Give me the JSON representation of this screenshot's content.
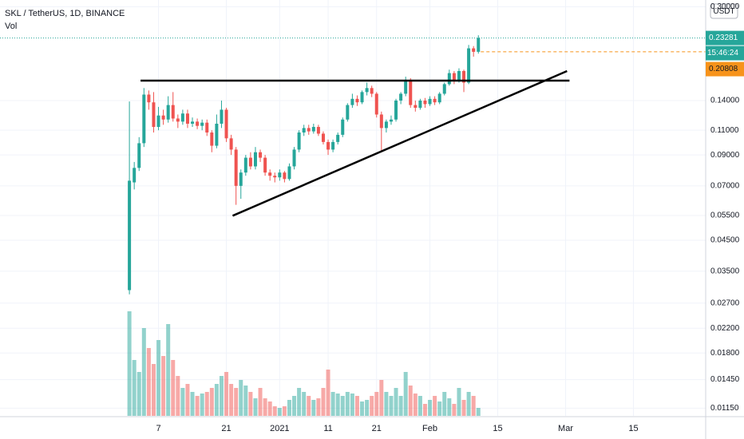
{
  "chart_data": {
    "type": "candlestick",
    "title": "SKL / TetherUS, 1D, BINANCE",
    "indicator": "Vol",
    "currency": "USDT",
    "log_scale": true,
    "grid": true,
    "up_color": "#26a69a",
    "down_color": "#ef5350",
    "line_color": "#000000",
    "price_line_color": "#f7931a",
    "xlim": [
      -26.7,
      118.9
    ],
    "ylim": [
      0.0108,
      0.317
    ],
    "xticks": [
      {
        "value": 6,
        "label": "7"
      },
      {
        "value": 20,
        "label": "21"
      },
      {
        "value": 31,
        "label": "2021"
      },
      {
        "value": 41,
        "label": "11"
      },
      {
        "value": 51,
        "label": "21"
      },
      {
        "value": 62,
        "label": "Feb"
      },
      {
        "value": 76,
        "label": "15"
      },
      {
        "value": 90,
        "label": "Mar"
      },
      {
        "value": 104,
        "label": "15"
      }
    ],
    "yticks": [
      {
        "value": 0.3,
        "label": "0.30000"
      },
      {
        "value": 0.14,
        "label": "0.14000"
      },
      {
        "value": 0.11,
        "label": "0.11000"
      },
      {
        "value": 0.09,
        "label": "0.09000"
      },
      {
        "value": 0.07,
        "label": "0.07000"
      },
      {
        "value": 0.055,
        "label": "0.05500"
      },
      {
        "value": 0.045,
        "label": "0.04500"
      },
      {
        "value": 0.035,
        "label": "0.03500"
      },
      {
        "value": 0.027,
        "label": "0.02700"
      },
      {
        "value": 0.022,
        "label": "0.02200"
      },
      {
        "value": 0.018,
        "label": "0.01800"
      },
      {
        "value": 0.0145,
        "label": "0.01450"
      },
      {
        "value": 0.0115,
        "label": "0.01150"
      }
    ],
    "last_price": 0.23281,
    "countdown": "15:46:24",
    "price_line": 0.20808,
    "ohlc": [
      [
        0.03,
        0.139,
        0.029,
        0.073
      ],
      [
        0.072,
        0.085,
        0.068,
        0.081
      ],
      [
        0.081,
        0.104,
        0.079,
        0.099
      ],
      [
        0.099,
        0.155,
        0.096,
        0.147
      ],
      [
        0.147,
        0.152,
        0.13,
        0.138
      ],
      [
        0.138,
        0.15,
        0.108,
        0.113
      ],
      [
        0.113,
        0.133,
        0.11,
        0.124
      ],
      [
        0.124,
        0.13,
        0.115,
        0.12
      ],
      [
        0.12,
        0.145,
        0.117,
        0.135
      ],
      [
        0.135,
        0.15,
        0.118,
        0.121
      ],
      [
        0.121,
        0.125,
        0.112,
        0.118
      ],
      [
        0.118,
        0.13,
        0.115,
        0.126
      ],
      [
        0.126,
        0.13,
        0.112,
        0.116
      ],
      [
        0.116,
        0.122,
        0.113,
        0.118
      ],
      [
        0.118,
        0.121,
        0.111,
        0.114
      ],
      [
        0.114,
        0.12,
        0.11,
        0.117
      ],
      [
        0.117,
        0.12,
        0.105,
        0.108
      ],
      [
        0.108,
        0.11,
        0.092,
        0.097
      ],
      [
        0.097,
        0.125,
        0.095,
        0.116
      ],
      [
        0.116,
        0.14,
        0.112,
        0.13
      ],
      [
        0.13,
        0.132,
        0.1,
        0.103
      ],
      [
        0.103,
        0.106,
        0.09,
        0.094
      ],
      [
        0.094,
        0.096,
        0.06,
        0.07
      ],
      [
        0.07,
        0.08,
        0.063,
        0.078
      ],
      [
        0.078,
        0.09,
        0.076,
        0.088
      ],
      [
        0.088,
        0.092,
        0.08,
        0.082
      ],
      [
        0.082,
        0.096,
        0.08,
        0.092
      ],
      [
        0.092,
        0.094,
        0.085,
        0.088
      ],
      [
        0.088,
        0.09,
        0.076,
        0.078
      ],
      [
        0.078,
        0.08,
        0.073,
        0.076
      ],
      [
        0.076,
        0.078,
        0.072,
        0.075
      ],
      [
        0.075,
        0.08,
        0.073,
        0.078
      ],
      [
        0.078,
        0.079,
        0.072,
        0.074
      ],
      [
        0.074,
        0.084,
        0.073,
        0.082
      ],
      [
        0.082,
        0.096,
        0.08,
        0.094
      ],
      [
        0.094,
        0.11,
        0.092,
        0.108
      ],
      [
        0.108,
        0.115,
        0.105,
        0.112
      ],
      [
        0.112,
        0.115,
        0.106,
        0.109
      ],
      [
        0.109,
        0.116,
        0.107,
        0.113
      ],
      [
        0.113,
        0.115,
        0.105,
        0.107
      ],
      [
        0.107,
        0.109,
        0.098,
        0.1
      ],
      [
        0.1,
        0.102,
        0.09,
        0.094
      ],
      [
        0.094,
        0.102,
        0.092,
        0.1
      ],
      [
        0.1,
        0.108,
        0.098,
        0.106
      ],
      [
        0.106,
        0.122,
        0.104,
        0.12
      ],
      [
        0.12,
        0.137,
        0.118,
        0.135
      ],
      [
        0.135,
        0.148,
        0.132,
        0.142
      ],
      [
        0.142,
        0.146,
        0.134,
        0.138
      ],
      [
        0.138,
        0.152,
        0.136,
        0.15
      ],
      [
        0.15,
        0.162,
        0.146,
        0.155
      ],
      [
        0.155,
        0.158,
        0.144,
        0.148
      ],
      [
        0.148,
        0.15,
        0.122,
        0.125
      ],
      [
        0.125,
        0.128,
        0.092,
        0.112
      ],
      [
        0.112,
        0.12,
        0.108,
        0.118
      ],
      [
        0.118,
        0.124,
        0.115,
        0.12
      ],
      [
        0.12,
        0.142,
        0.118,
        0.14
      ],
      [
        0.14,
        0.15,
        0.136,
        0.148
      ],
      [
        0.148,
        0.17,
        0.145,
        0.165
      ],
      [
        0.165,
        0.168,
        0.132,
        0.135
      ],
      [
        0.135,
        0.14,
        0.128,
        0.132
      ],
      [
        0.132,
        0.142,
        0.13,
        0.14
      ],
      [
        0.14,
        0.143,
        0.132,
        0.136
      ],
      [
        0.136,
        0.145,
        0.134,
        0.142
      ],
      [
        0.142,
        0.145,
        0.135,
        0.138
      ],
      [
        0.138,
        0.15,
        0.136,
        0.148
      ],
      [
        0.148,
        0.162,
        0.146,
        0.16
      ],
      [
        0.16,
        0.18,
        0.158,
        0.175
      ],
      [
        0.175,
        0.178,
        0.16,
        0.165
      ],
      [
        0.165,
        0.182,
        0.162,
        0.178
      ],
      [
        0.178,
        0.18,
        0.15,
        0.162
      ],
      [
        0.162,
        0.22,
        0.16,
        0.214
      ],
      [
        0.214,
        0.218,
        0.2,
        0.20808
      ],
      [
        0.20808,
        0.238,
        0.205,
        0.23281
      ]
    ],
    "volume": [
      131,
      70,
      55,
      110,
      85,
      65,
      95,
      75,
      115,
      70,
      50,
      35,
      40,
      30,
      25,
      28,
      30,
      35,
      40,
      50,
      55,
      40,
      35,
      45,
      38,
      30,
      22,
      35,
      22,
      18,
      12,
      10,
      12,
      20,
      25,
      35,
      30,
      25,
      20,
      22,
      35,
      58,
      30,
      28,
      25,
      30,
      28,
      25,
      18,
      20,
      25,
      30,
      45,
      30,
      25,
      35,
      25,
      55,
      38,
      28,
      25,
      15,
      20,
      25,
      18,
      30,
      22,
      15,
      35,
      20,
      30,
      25,
      10
    ],
    "drawings": [
      {
        "x": [
          2.3,
          90.8
        ],
        "y": [
          0.1647,
          0.1647
        ]
      },
      {
        "x": [
          21.3,
          90.3
        ],
        "y": [
          0.0549,
          0.178
        ]
      }
    ]
  }
}
